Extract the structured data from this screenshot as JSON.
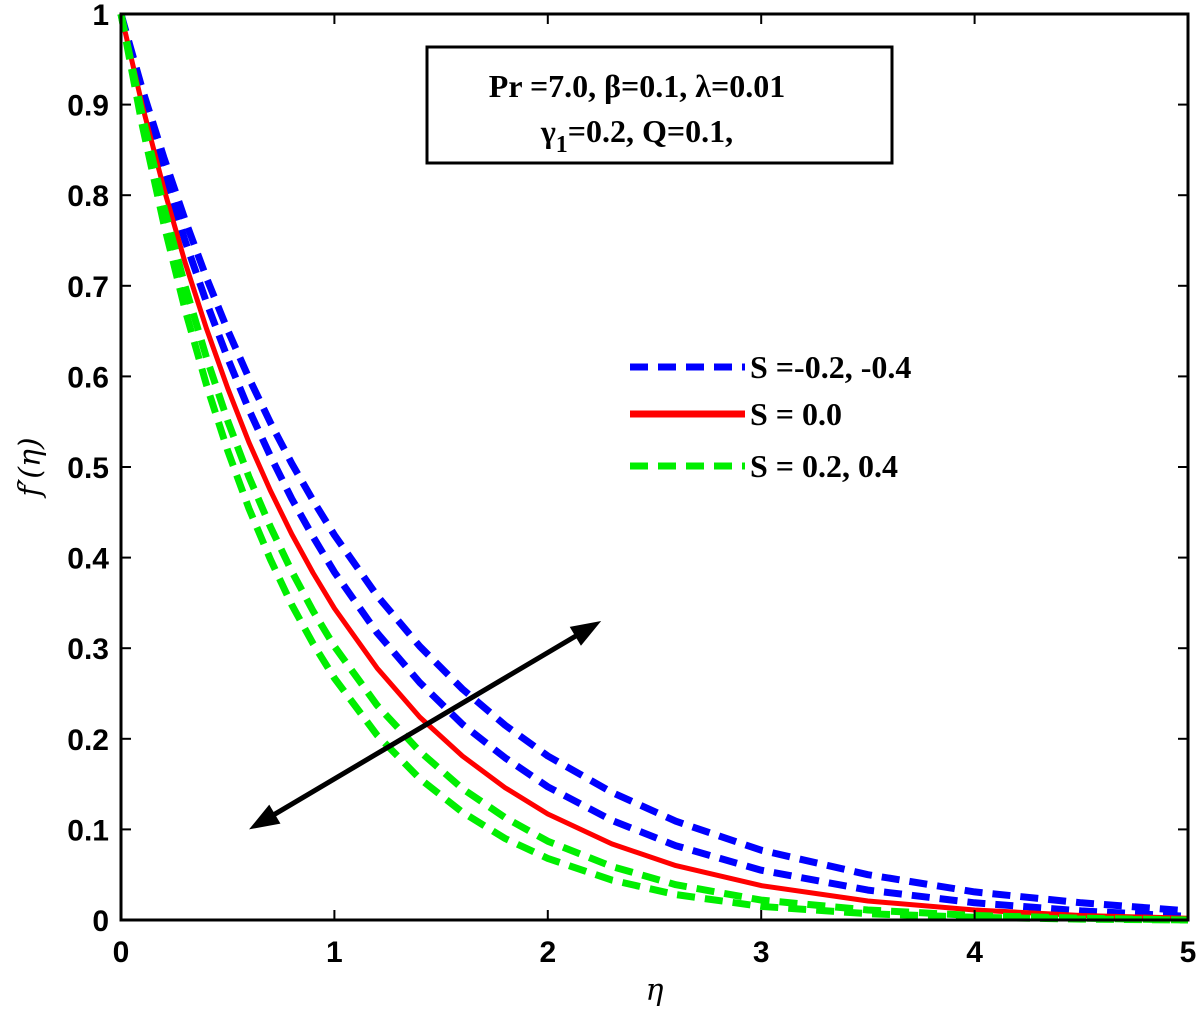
{
  "chart_data": {
    "type": "line",
    "xlabel": "η",
    "ylabel": "f′(η)",
    "xlim": [
      0,
      5
    ],
    "ylim": [
      0,
      1
    ],
    "x_ticks": [
      "0",
      "1",
      "2",
      "3",
      "4",
      "5"
    ],
    "y_ticks": [
      "0",
      "0.1",
      "0.2",
      "0.3",
      "0.4",
      "0.5",
      "0.6",
      "0.7",
      "0.8",
      "0.9",
      "1"
    ],
    "grid": false,
    "legend_position": "right",
    "legend": [
      {
        "label": "S =-0.2, -0.4",
        "color": "#0000ff",
        "style": "dashed"
      },
      {
        "label": "S = 0.0",
        "color": "#ff0000",
        "style": "solid"
      },
      {
        "label": "S = 0.2,  0.4",
        "color": "#00ee00",
        "style": "dashed"
      }
    ],
    "annotation_box": {
      "line1": "Pr =7.0, β=0.1, λ=0.01",
      "line2_prefix": "γ",
      "line2_sub": "1",
      "line2_rest": "=0.2, Q=0.1,"
    },
    "arrow": {
      "from": [
        0.6,
        0.1
      ],
      "to": [
        2.25,
        0.33
      ],
      "double_headed": true
    },
    "x": [
      0,
      0.1,
      0.2,
      0.3,
      0.4,
      0.5,
      0.6,
      0.7,
      0.8,
      0.9,
      1.0,
      1.2,
      1.4,
      1.6,
      1.8,
      2.0,
      2.3,
      2.6,
      3.0,
      3.5,
      4.0,
      4.5,
      5.0
    ],
    "series": [
      {
        "color": "#0000ff",
        "style": "dashed",
        "values": [
          1.0,
          0.917,
          0.842,
          0.773,
          0.709,
          0.651,
          0.598,
          0.549,
          0.504,
          0.463,
          0.425,
          0.358,
          0.302,
          0.255,
          0.215,
          0.181,
          0.141,
          0.109,
          0.077,
          0.05,
          0.031,
          0.019,
          0.01
        ]
      },
      {
        "color": "#0000ff",
        "style": "dashed",
        "values": [
          1.0,
          0.909,
          0.826,
          0.75,
          0.682,
          0.62,
          0.563,
          0.512,
          0.465,
          0.423,
          0.384,
          0.317,
          0.262,
          0.216,
          0.179,
          0.147,
          0.11,
          0.082,
          0.055,
          0.033,
          0.019,
          0.01,
          0.004
        ]
      },
      {
        "color": "#ff0000",
        "style": "solid",
        "values": [
          1.0,
          0.899,
          0.808,
          0.726,
          0.653,
          0.587,
          0.527,
          0.474,
          0.426,
          0.383,
          0.344,
          0.278,
          0.224,
          0.181,
          0.146,
          0.117,
          0.084,
          0.06,
          0.038,
          0.021,
          0.011,
          0.005,
          0.002
        ]
      },
      {
        "color": "#00ee00",
        "style": "dashed",
        "values": [
          1.0,
          0.888,
          0.788,
          0.7,
          0.621,
          0.551,
          0.489,
          0.434,
          0.385,
          0.341,
          0.302,
          0.237,
          0.186,
          0.145,
          0.113,
          0.087,
          0.059,
          0.039,
          0.022,
          0.011,
          0.005,
          0.002,
          0.0
        ]
      },
      {
        "color": "#00ee00",
        "style": "dashed",
        "values": [
          1.0,
          0.877,
          0.769,
          0.674,
          0.591,
          0.518,
          0.454,
          0.398,
          0.348,
          0.305,
          0.267,
          0.204,
          0.156,
          0.119,
          0.09,
          0.068,
          0.044,
          0.028,
          0.015,
          0.007,
          0.003,
          0.001,
          0.0
        ]
      }
    ]
  }
}
